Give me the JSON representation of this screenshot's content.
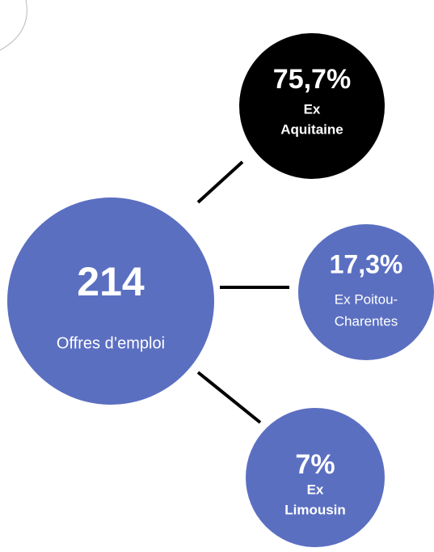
{
  "center": {
    "value": "214",
    "label": "Offres d’emploi"
  },
  "nodes": [
    {
      "value": "75,7%",
      "label_lines": [
        "Ex",
        "Aquitaine"
      ]
    },
    {
      "value": "17,3%",
      "label_lines": [
        "Ex Poitou-",
        "Charentes"
      ]
    },
    {
      "value": "7%",
      "label_lines": [
        "Ex",
        "Limousin"
      ]
    }
  ]
}
